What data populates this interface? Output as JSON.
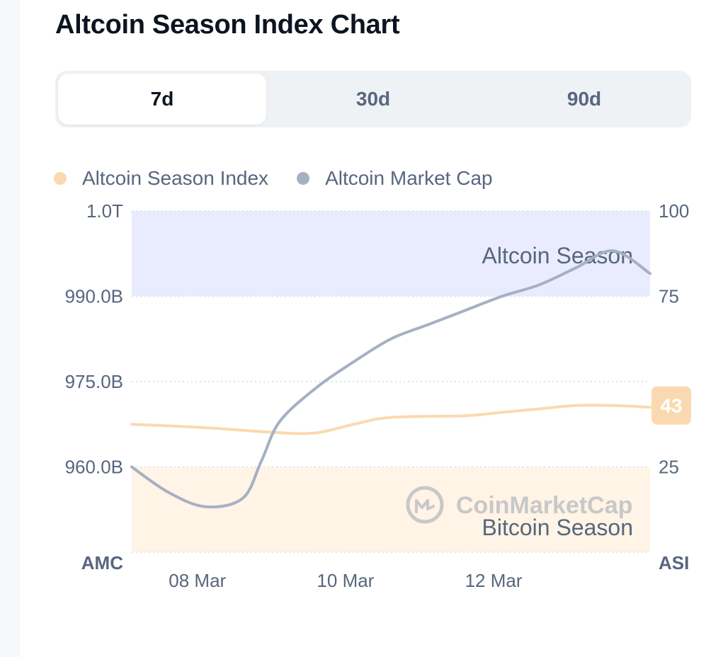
{
  "page": {
    "title": "Altcoin Season Index Chart"
  },
  "tabs": [
    {
      "label": "7d",
      "active": true
    },
    {
      "label": "30d",
      "active": false
    },
    {
      "label": "90d",
      "active": false
    }
  ],
  "legend": [
    {
      "label": "Altcoin Season Index",
      "color": "#fbd9b0"
    },
    {
      "label": "Altcoin Market Cap",
      "color": "#a6b0c3"
    }
  ],
  "watermark": "CoinMarketCap",
  "chart_data": {
    "type": "line",
    "x_ticks": [
      "08 Mar",
      "10 Mar",
      "12 Mar"
    ],
    "x_range": [
      "2025-03-07T12:00",
      "2025-03-14T12:00"
    ],
    "left_axis": {
      "label": "AMC",
      "ticks": [
        "1.0T",
        "990.0B",
        "975.0B",
        "960.0B"
      ],
      "tick_values": [
        1005,
        990,
        975,
        960
      ],
      "range": [
        945,
        1005
      ],
      "unit": "billion USD"
    },
    "right_axis": {
      "label": "ASI",
      "ticks": [
        "100",
        "75",
        "25"
      ],
      "tick_values": [
        100,
        75,
        25
      ],
      "range": [
        0,
        100
      ]
    },
    "zones": [
      {
        "label": "Altcoin Season",
        "from": 75,
        "to": 100,
        "color": "#e9ecfe"
      },
      {
        "label": "Bitcoin Season",
        "from": 0,
        "to": 25,
        "color": "#fff4e6"
      }
    ],
    "series": [
      {
        "name": "Altcoin Season Index",
        "axis": "right",
        "color": "#fbd9b0",
        "x": [
          "2025-03-07T12:00",
          "2025-03-08T12:00",
          "2025-03-09T12:00",
          "2025-03-10T00:00",
          "2025-03-10T12:00",
          "2025-03-11T00:00",
          "2025-03-12T00:00",
          "2025-03-12T12:00",
          "2025-03-13T00:00",
          "2025-03-13T12:00",
          "2025-03-14T00:00",
          "2025-03-14T12:00"
        ],
        "values": [
          37.5,
          36.5,
          35,
          35,
          37.5,
          39.5,
          40,
          41,
          42,
          43,
          43,
          42.5
        ]
      },
      {
        "name": "Altcoin Market Cap",
        "axis": "left",
        "color": "#a6b0c3",
        "x": [
          "2025-03-07T12:00",
          "2025-03-08T00:00",
          "2025-03-08T12:00",
          "2025-03-09T00:00",
          "2025-03-09T06:00",
          "2025-03-09T12:00",
          "2025-03-10T00:00",
          "2025-03-10T12:00",
          "2025-03-11T00:00",
          "2025-03-11T12:00",
          "2025-03-12T00:00",
          "2025-03-12T12:00",
          "2025-03-13T00:00",
          "2025-03-13T12:00",
          "2025-03-14T00:00",
          "2025-03-14T12:00"
        ],
        "values": [
          960.0,
          955.5,
          953.0,
          954.5,
          961.0,
          968.0,
          974.0,
          978.5,
          982.5,
          985.0,
          987.5,
          990.0,
          992.0,
          995.0,
          998.0,
          994.0
        ]
      }
    ],
    "current_value_badge": "43"
  }
}
